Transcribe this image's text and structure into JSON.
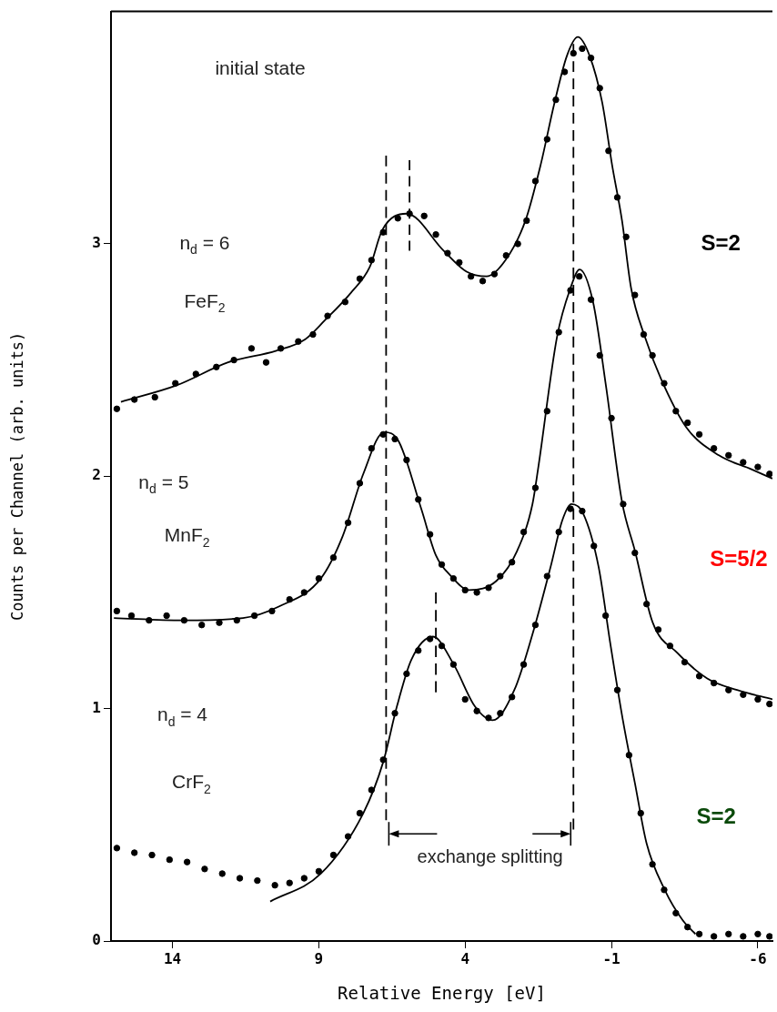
{
  "chart_data": {
    "type": "line",
    "xlabel": "Relative Energy [eV]",
    "ylabel": "Counts per Channel (arb. units)",
    "xlim": [
      16.1,
      -6.5
    ],
    "xticks": [
      14,
      9,
      4,
      -1,
      -6
    ],
    "ylim": [
      0,
      4
    ],
    "yticks": [
      0,
      1,
      2,
      3
    ],
    "grid": false,
    "legend": false,
    "line_style": "solid",
    "marker": "none",
    "series": [
      {
        "color": "#000000",
        "x": [
          15.76,
          13.88,
          12.1,
          10.45,
          9.46,
          8.8,
          7.9,
          7.26,
          6.83,
          6.0,
          4.73,
          3.95,
          3.27,
          2.62,
          1.94,
          1.42,
          0.96,
          0.52,
          0.15,
          -0.25,
          -0.68,
          -1.02,
          -1.36,
          -1.67,
          -2.14,
          -2.69,
          -3.56,
          -4.67,
          -5.78,
          -6.5
        ],
        "values": [
          2.32,
          2.39,
          2.49,
          2.54,
          2.59,
          2.67,
          2.79,
          2.9,
          3.06,
          3.13,
          2.97,
          2.88,
          2.86,
          2.93,
          3.1,
          3.34,
          3.6,
          3.81,
          3.89,
          3.81,
          3.61,
          3.34,
          3.1,
          2.81,
          2.6,
          2.42,
          2.21,
          2.09,
          2.03,
          1.99
        ]
      },
      {
        "color": "#000000",
        "x": [
          16.0,
          13.66,
          11.59,
          10.35,
          8.93,
          8.19,
          7.48,
          6.77,
          6.27,
          5.5,
          5.0,
          4.48,
          3.86,
          2.93,
          2.22,
          1.7,
          1.51,
          0.86,
          0.4,
          0.09,
          -0.37,
          -0.81,
          -1.36,
          -1.8,
          -2.41,
          -3.25,
          -4.27,
          -5.29,
          -6.5
        ],
        "values": [
          1.39,
          1.38,
          1.39,
          1.44,
          1.56,
          1.74,
          2.01,
          2.19,
          2.15,
          1.86,
          1.66,
          1.57,
          1.51,
          1.55,
          1.68,
          1.88,
          2.03,
          2.6,
          2.81,
          2.89,
          2.75,
          2.39,
          1.89,
          1.68,
          1.37,
          1.24,
          1.13,
          1.08,
          1.04
        ]
      },
      {
        "color": "#000000",
        "x": [
          10.66,
          8.93,
          7.48,
          6.8,
          6.33,
          5.84,
          5.1,
          4.39,
          3.67,
          3.06,
          2.32,
          1.7,
          1.08,
          0.68,
          0.37,
          -0.03,
          -0.56,
          -0.96,
          -1.39,
          -1.8,
          -2.2,
          -2.82,
          -3.43,
          -3.87
        ],
        "values": [
          0.17,
          0.29,
          0.55,
          0.77,
          1.01,
          1.21,
          1.31,
          1.19,
          1.01,
          0.95,
          1.08,
          1.32,
          1.61,
          1.81,
          1.88,
          1.84,
          1.61,
          1.28,
          0.95,
          0.68,
          0.42,
          0.22,
          0.09,
          0.03
        ]
      },
      {
        "type": "scatter",
        "color": "#000000",
        "marker": "circle",
        "x": [
          15.9,
          15.3,
          14.6,
          13.9,
          13.2,
          12.5,
          11.9,
          11.3,
          10.8,
          10.3,
          9.7,
          9.2,
          8.7,
          8.1,
          7.6,
          7.2,
          6.8,
          6.3,
          5.9,
          5.4,
          5.0,
          4.6,
          4.2,
          3.8,
          3.4,
          3.0,
          2.6,
          2.2,
          1.9,
          1.6,
          1.2,
          0.9,
          0.6,
          0.3,
          0.0,
          -0.3,
          -0.6,
          -0.9,
          -1.2,
          -1.5,
          -1.8,
          -2.1,
          -2.4,
          -2.8,
          -3.2,
          -3.6,
          -4.0,
          -4.5,
          -5.0,
          -5.5,
          -6.0,
          -6.4
        ],
        "values": [
          2.29,
          2.33,
          2.34,
          2.4,
          2.44,
          2.47,
          2.5,
          2.55,
          2.49,
          2.55,
          2.58,
          2.61,
          2.69,
          2.75,
          2.85,
          2.93,
          3.05,
          3.11,
          3.13,
          3.12,
          3.04,
          2.96,
          2.92,
          2.86,
          2.84,
          2.87,
          2.95,
          3.0,
          3.1,
          3.27,
          3.45,
          3.62,
          3.74,
          3.82,
          3.84,
          3.8,
          3.67,
          3.4,
          3.2,
          3.03,
          2.78,
          2.61,
          2.52,
          2.4,
          2.28,
          2.23,
          2.18,
          2.12,
          2.09,
          2.06,
          2.04,
          2.01
        ]
      },
      {
        "type": "scatter",
        "color": "#000000",
        "marker": "circle",
        "x": [
          15.9,
          15.4,
          14.8,
          14.2,
          13.6,
          13.0,
          12.4,
          11.8,
          11.2,
          10.6,
          10.0,
          9.5,
          9.0,
          8.5,
          8.0,
          7.6,
          7.2,
          6.8,
          6.4,
          6.0,
          5.6,
          5.2,
          4.8,
          4.4,
          4.0,
          3.6,
          3.2,
          2.8,
          2.4,
          2.0,
          1.6,
          1.2,
          0.8,
          0.4,
          0.1,
          -0.3,
          -0.6,
          -1.0,
          -1.4,
          -1.8,
          -2.2,
          -2.6,
          -3.0,
          -3.5,
          -4.0,
          -4.5,
          -5.0,
          -5.5,
          -6.0,
          -6.4
        ],
        "values": [
          1.42,
          1.4,
          1.38,
          1.4,
          1.38,
          1.36,
          1.37,
          1.38,
          1.4,
          1.42,
          1.47,
          1.5,
          1.56,
          1.65,
          1.8,
          1.97,
          2.12,
          2.18,
          2.16,
          2.07,
          1.9,
          1.75,
          1.62,
          1.56,
          1.51,
          1.5,
          1.52,
          1.57,
          1.63,
          1.76,
          1.95,
          2.28,
          2.62,
          2.8,
          2.86,
          2.76,
          2.52,
          2.25,
          1.88,
          1.67,
          1.45,
          1.34,
          1.27,
          1.2,
          1.14,
          1.11,
          1.08,
          1.06,
          1.04,
          1.02
        ]
      },
      {
        "type": "scatter",
        "color": "#000000",
        "marker": "circle",
        "x": [
          15.9,
          15.3,
          14.7,
          14.1,
          13.5,
          12.9,
          12.3,
          11.7,
          11.1,
          10.5,
          10.0,
          9.5,
          9.0,
          8.5,
          8.0,
          7.6,
          7.2,
          6.8,
          6.4,
          6.0,
          5.6,
          5.2,
          4.8,
          4.4,
          4.0,
          3.6,
          3.2,
          2.8,
          2.4,
          2.0,
          1.6,
          1.2,
          0.8,
          0.4,
          0.0,
          -0.4,
          -0.8,
          -1.2,
          -1.6,
          -2.0,
          -2.4,
          -2.8,
          -3.2,
          -3.6,
          -4.0,
          -4.5,
          -5.0,
          -5.5,
          -6.0,
          -6.4
        ],
        "values": [
          0.4,
          0.38,
          0.37,
          0.35,
          0.34,
          0.31,
          0.29,
          0.27,
          0.26,
          0.24,
          0.25,
          0.27,
          0.3,
          0.37,
          0.45,
          0.55,
          0.65,
          0.78,
          0.98,
          1.15,
          1.25,
          1.3,
          1.27,
          1.19,
          1.04,
          0.99,
          0.96,
          0.98,
          1.05,
          1.19,
          1.36,
          1.57,
          1.76,
          1.86,
          1.85,
          1.7,
          1.4,
          1.08,
          0.8,
          0.55,
          0.33,
          0.22,
          0.12,
          0.06,
          0.03,
          0.02,
          0.03,
          0.02,
          0.03,
          0.02
        ]
      },
      {
        "color": "#000000",
        "line_style": "dashed",
        "x": [
          6.7,
          6.7
        ],
        "values": [
          0.52,
          3.38
        ]
      },
      {
        "color": "#000000",
        "line_style": "dashed",
        "x": [
          0.3,
          0.3
        ],
        "values": [
          0.48,
          3.86
        ]
      },
      {
        "color": "#000000",
        "line_style": "dashed",
        "x": [
          5.9,
          5.9
        ],
        "values": [
          2.97,
          3.36
        ]
      },
      {
        "color": "#000000",
        "line_style": "dashed",
        "x": [
          5.0,
          5.0
        ],
        "values": [
          1.07,
          1.5
        ]
      }
    ],
    "annotations": [
      "initial state",
      "n$_{d}$ = 6",
      "FeF$_{2}$",
      "n$_{d}$ = 5",
      "MnF$_{2}$",
      "n$_{d}$ = 4",
      "CrF$_{2}$",
      "exchange splitting",
      "S=2",
      "S=5/2",
      "S=2"
    ]
  }
}
